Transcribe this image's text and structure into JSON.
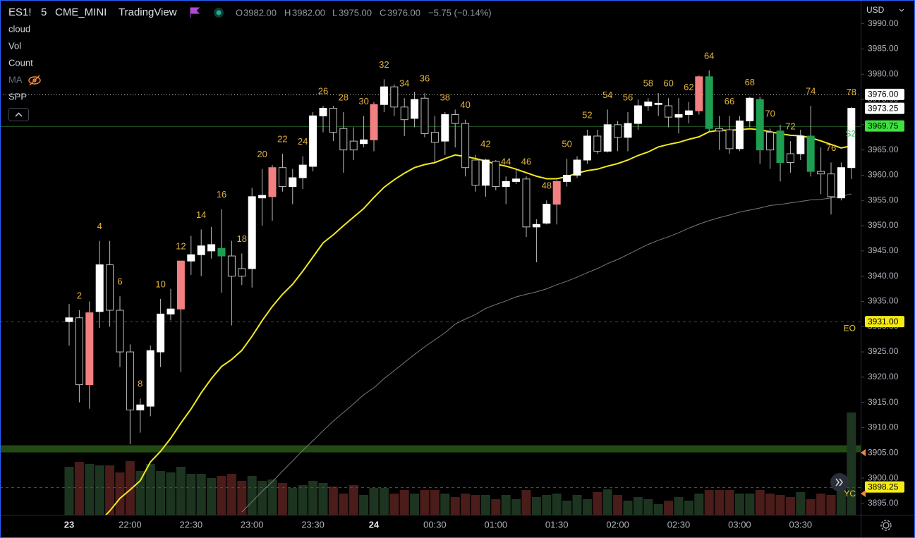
{
  "header": {
    "symbol": "ES1!",
    "interval": "5",
    "exchange": "CME_MINI",
    "source": "TradingView",
    "ohlc": {
      "O": "3982.00",
      "H": "3982.00",
      "L": "3975.00",
      "C": "3976.00"
    },
    "change": "−5.75 (−0.14%)"
  },
  "legend": [
    "cloud",
    "Vol",
    "Count",
    "MA",
    "SPP"
  ],
  "currency": "USD",
  "chart_data": {
    "type": "candlestick",
    "categories": [
      "23",
      null,
      null,
      null,
      null,
      null,
      "22:00",
      null,
      null,
      null,
      null,
      null,
      "22:30",
      null,
      null,
      null,
      null,
      null,
      "23:00",
      null,
      null,
      null,
      null,
      null,
      "23:30",
      null,
      null,
      null,
      null,
      null,
      "24",
      null,
      null,
      null,
      null,
      null,
      "00:30",
      null,
      null,
      null,
      null,
      null,
      "01:00",
      null,
      null,
      null,
      null,
      null,
      "01:30",
      null,
      null,
      null,
      null,
      null,
      "02:00",
      null,
      null,
      null,
      null,
      null,
      "02:30",
      null,
      null,
      null,
      null,
      null,
      "03:00",
      null,
      null,
      null,
      null,
      null,
      "03:30",
      null,
      null,
      null,
      null,
      null
    ],
    "open": [
      3931,
      3931.75,
      3918.5,
      3933,
      3942.25,
      3933.25,
      3925,
      3913.5,
      3914.25,
      3925,
      3932.5,
      3933.5,
      3943,
      3944.25,
      3945,
      3945.5,
      3944,
      3941.5,
      3941.5,
      3955.5,
      3955.75,
      3961.5,
      3957.75,
      3959.5,
      3961.75,
      3971.75,
      3973.25,
      3969.25,
      3966.75,
      3966.25,
      3967,
      3974,
      3977.5,
      3973.5,
      3971.25,
      3975.25,
      3968.5,
      3966.75,
      3972,
      3970.25,
      3963,
      3958,
      3962.75,
      3957.75,
      3958.75,
      3959.25,
      3949.75,
      3950.5,
      3954.25,
      3958.75,
      3960,
      3963,
      3967.75,
      3964.75,
      3970,
      3967.5,
      3970.25,
      3973.75,
      3974,
      3973.75,
      3971.5,
      3972,
      3972.75,
      3979.5,
      3969.25,
      3969,
      3965.25,
      3970.75,
      3975,
      3968.5,
      3968.75,
      3964.25,
      3964.25,
      3967.75,
      3960.75,
      3960.25,
      3955.5,
      3961.5
    ],
    "high": [
      3934.5,
      3933.25,
      3935,
      3947,
      3947,
      3936,
      3926.5,
      3915.75,
      3926.25,
      3935.5,
      3937.5,
      3943,
      3948,
      3949.25,
      3949.75,
      3953.25,
      3947,
      3944.5,
      3957.5,
      3961.25,
      3962,
      3964.25,
      3961.25,
      3963.75,
      3972.5,
      3973.75,
      3973.75,
      3972.5,
      3969.5,
      3971.75,
      3974.5,
      3979,
      3978,
      3975.25,
      3976.5,
      3976.25,
      3971.75,
      3972.5,
      3973,
      3971,
      3964,
      3963.25,
      3963,
      3959.75,
      3961.25,
      3959.75,
      3951.25,
      3955,
      3959,
      3963.25,
      3963.75,
      3969,
      3969,
      3973,
      3970.75,
      3972.5,
      3975,
      3975.25,
      3976.25,
      3975.25,
      3975.25,
      3974.5,
      3979.75,
      3980.75,
      3971.75,
      3971.75,
      3971.75,
      3975.5,
      3975.5,
      3969.25,
      3970,
      3966.75,
      3969,
      3973.75,
      3965.5,
      3962.5,
      3962.5,
      3973.5
    ],
    "low": [
      3926.25,
      3915,
      3913.75,
      3929.75,
      3930,
      3922,
      3906.75,
      3909,
      3912.25,
      3922,
      3931.25,
      3921,
      3940.25,
      3940,
      3943.5,
      3936.75,
      3930.25,
      3938.25,
      3937.75,
      3950,
      3951,
      3956.75,
      3954.25,
      3957.25,
      3960.75,
      3968.5,
      3966.75,
      3960.5,
      3963,
      3965.5,
      3964.75,
      3972.5,
      3971.75,
      3967.75,
      3969.5,
      3967.5,
      3962.5,
      3964,
      3965.5,
      3959.75,
      3956.75,
      3955.75,
      3957,
      3954.25,
      3958.25,
      3947.75,
      3942.75,
      3950.25,
      3950.25,
      3957.75,
      3959.5,
      3962.25,
      3964.25,
      3964.5,
      3964.75,
      3964.75,
      3969,
      3972.75,
      3971.75,
      3969.5,
      3968.25,
      3970.25,
      3972,
      3968.5,
      3965,
      3964.25,
      3964.75,
      3969.5,
      3962.25,
      3961.25,
      3958.75,
      3960.5,
      3963,
      3959.75,
      3956.25,
      3952.25,
      3955,
      3959.25
    ],
    "close": [
      3931.75,
      3918.5,
      3932.75,
      3942.25,
      3933.25,
      3925,
      3913.5,
      3914.5,
      3925.25,
      3932.5,
      3933.5,
      3943,
      3944.25,
      3946,
      3946.25,
      3944,
      3940,
      3940,
      3955.75,
      3956,
      3961.5,
      3957.75,
      3959.5,
      3962,
      3971.75,
      3973.25,
      3968.5,
      3965,
      3965,
      3967,
      3974,
      3977.5,
      3973.5,
      3971,
      3975,
      3968.25,
      3966.5,
      3972,
      3970.25,
      3961.5,
      3958,
      3963,
      3957.75,
      3958.75,
      3959.25,
      3949.75,
      3950.25,
      3954.25,
      3958.75,
      3960,
      3963,
      3967.75,
      3964.75,
      3970,
      3967.5,
      3970.25,
      3973.75,
      3974.5,
      3974.25,
      3971.5,
      3972,
      3972.75,
      3979.5,
      3969.25,
      3968.75,
      3965.25,
      3970.75,
      3975.25,
      3965,
      3965,
      3962.5,
      3962.5,
      3967.75,
      3960.75,
      3960.25,
      3955.75,
      3961.5,
      3973.25
    ],
    "colors": [
      "#ffffff",
      "#000000",
      "#f28080",
      "#ffffff",
      "#000000",
      "#000000",
      "#000000",
      "#ffffff",
      "#ffffff",
      "#ffffff",
      "#ffffff",
      "#f28080",
      "#ffffff",
      "#ffffff",
      "#ffffff",
      "#1e9e50",
      "#000000",
      "#000000",
      "#ffffff",
      "#ffffff",
      "#f28080",
      "#000000",
      "#ffffff",
      "#ffffff",
      "#ffffff",
      "#ffffff",
      "#000000",
      "#000000",
      "#000000",
      "#ffffff",
      "#f28080",
      "#ffffff",
      "#000000",
      "#000000",
      "#ffffff",
      "#000000",
      "#000000",
      "#ffffff",
      "#000000",
      "#000000",
      "#000000",
      "#ffffff",
      "#000000",
      "#ffffff",
      "#ffffff",
      "#000000",
      "#ffffff",
      "#ffffff",
      "#f28080",
      "#ffffff",
      "#ffffff",
      "#ffffff",
      "#000000",
      "#ffffff",
      "#000000",
      "#ffffff",
      "#ffffff",
      "#ffffff",
      "#ffffff",
      "#000000",
      "#ffffff",
      "#ffffff",
      "#f28080",
      "#1e9e50",
      "#000000",
      "#000000",
      "#ffffff",
      "#ffffff",
      "#1e9e50",
      "#000000",
      "#1e9e50",
      "#000000",
      "#ffffff",
      "#1e9e50",
      "#000000",
      "#000000",
      "#ffffff",
      "#ffffff"
    ],
    "wick_color": "#bdbdbd",
    "volume": [
      68,
      75,
      72,
      70,
      70,
      60,
      76,
      62,
      72,
      62,
      60,
      68,
      58,
      58,
      52,
      55,
      58,
      48,
      55,
      48,
      50,
      45,
      38,
      42,
      48,
      45,
      40,
      30,
      42,
      28,
      38,
      38,
      30,
      35,
      30,
      35,
      35,
      30,
      25,
      30,
      28,
      28,
      22,
      28,
      22,
      35,
      25,
      28,
      30,
      20,
      28,
      22,
      32,
      36,
      28,
      20,
      25,
      22,
      15,
      20,
      25,
      20,
      30,
      35,
      35,
      35,
      30,
      30,
      35,
      30,
      28,
      25,
      32,
      22,
      30,
      28,
      38,
      145
    ],
    "volume_colors": {
      "up": "#1d3520",
      "down": "#4a1c1a"
    },
    "counts": [
      null,
      2,
      null,
      4,
      null,
      6,
      null,
      8,
      null,
      10,
      null,
      12,
      null,
      14,
      null,
      16,
      null,
      18,
      null,
      20,
      null,
      22,
      null,
      24,
      null,
      26,
      null,
      28,
      null,
      30,
      null,
      32,
      null,
      34,
      null,
      36,
      null,
      38,
      null,
      40,
      null,
      42,
      null,
      44,
      null,
      46,
      null,
      48,
      null,
      50,
      null,
      52,
      null,
      54,
      null,
      56,
      null,
      58,
      null,
      60,
      null,
      62,
      null,
      64,
      null,
      66,
      null,
      68,
      null,
      70,
      null,
      72,
      null,
      74,
      null,
      76,
      null,
      78
    ],
    "count_color": "#e3b341",
    "ema": [
      null,
      null,
      null,
      3891.4,
      3893.5,
      3896,
      3897.7,
      3899.5,
      3903.2,
      3905.3,
      3907.9,
      3910.9,
      3913.7,
      3916.9,
      3919.7,
      3922.1,
      3923.5,
      3925.3,
      3928.1,
      3931.2,
      3934,
      3936.4,
      3938.4,
      3941,
      3943.8,
      3946.6,
      3948.2,
      3950,
      3951.7,
      3953.4,
      3955.6,
      3957.6,
      3959.1,
      3960.4,
      3961.5,
      3962.1,
      3962.5,
      3963.3,
      3964,
      3963.7,
      3963.3,
      3962.8,
      3962.2,
      3961.8,
      3961.2,
      3960.5,
      3959.8,
      3959.3,
      3959.3,
      3959.7,
      3960.4,
      3960.9,
      3961.2,
      3961.8,
      3962.3,
      3963,
      3963.9,
      3964.6,
      3965.6,
      3966.1,
      3966.5,
      3967.1,
      3967.6,
      3968.6,
      3968.9,
      3968.9,
      3969,
      3969.2,
      3969,
      3968.6,
      3968.2,
      3967.9,
      3967.8,
      3967.4,
      3966.8,
      3966.1,
      3965.4,
      3965.8
    ],
    "ema_color": "#f2ea1d",
    "sma": [
      null,
      null,
      null,
      null,
      null,
      null,
      null,
      null,
      null,
      null,
      null,
      null,
      null,
      null,
      null,
      null,
      null,
      3893.3,
      3895.3,
      3897.4,
      3899.3,
      3901.4,
      3903.4,
      3905.5,
      3907.4,
      3909.4,
      3911.3,
      3913,
      3914.7,
      3916.5,
      3917.9,
      3919.7,
      3921.3,
      3922.9,
      3924.5,
      3926,
      3927.4,
      3928.8,
      3930.5,
      3931.5,
      3932.4,
      3933.6,
      3934.4,
      3935.1,
      3935.9,
      3936.4,
      3936.9,
      3937.5,
      3938.3,
      3939,
      3939.8,
      3940.7,
      3941.5,
      3942.5,
      3943.3,
      3944.3,
      3945.3,
      3946.3,
      3947.1,
      3947.8,
      3948.6,
      3949.5,
      3950.3,
      3951,
      3951.6,
      3952.1,
      3952.7,
      3953.1,
      3953.5,
      3954,
      3954.2,
      3954.5,
      3954.8,
      3955.1,
      3955.2,
      3955.5,
      3955.8,
      3956.3
    ],
    "sma_color": "#7a7a7a",
    "ylim": [
      3892.75,
      3994
    ],
    "yticks": [
      {
        "value": 3895,
        "label": "3895.00"
      },
      {
        "value": 3900,
        "label": "3900.00"
      },
      {
        "value": 3905,
        "label": "3905.00"
      },
      {
        "value": 3910,
        "label": "3910.00"
      },
      {
        "value": 3915,
        "label": "3915.00"
      },
      {
        "value": 3920,
        "label": "3920.00"
      },
      {
        "value": 3925,
        "label": "3925.00"
      },
      {
        "value": 3930,
        "label": "3930.00"
      },
      {
        "value": 3935,
        "label": "3935.00"
      },
      {
        "value": 3940,
        "label": "3940.00"
      },
      {
        "value": 3945,
        "label": "3945.00"
      },
      {
        "value": 3950,
        "label": "3950.00"
      },
      {
        "value": 3955,
        "label": "3955.00"
      },
      {
        "value": 3960,
        "label": "3960.00"
      },
      {
        "value": 3965,
        "label": "3965.00"
      },
      {
        "value": 3970,
        "label": "3970.00"
      },
      {
        "value": 3975,
        "label": "3975.00"
      },
      {
        "value": 3980,
        "label": "3980.00"
      },
      {
        "value": 3985,
        "label": "3985.00"
      },
      {
        "value": 3990,
        "label": "3990.00"
      }
    ],
    "price_lines": [
      {
        "value": 3976,
        "label": "3976.00",
        "bg": "#ffffff",
        "style": "dotted"
      },
      {
        "value": 3973.25,
        "label": "3973.25",
        "bg": "#ffffff"
      },
      {
        "value": 3969.75,
        "label": "3969.75",
        "bg": "#3ee23f",
        "style": "solid"
      },
      {
        "value": 3931,
        "label": "3931.00",
        "bg": "#f5eb12",
        "style": "dashed"
      },
      {
        "value": 3898.25,
        "label": "3898.25",
        "bg": "#f5eb12",
        "style": "dashed"
      }
    ],
    "zones": [
      {
        "from": 3905.1,
        "to": 3906.5,
        "color": "#244a14"
      }
    ],
    "level_tags": [
      {
        "text": "EO",
        "value": 3929.6,
        "color": "#e3c341"
      },
      {
        "text": "YC",
        "value": 3896.8,
        "color": "#e3c341"
      },
      {
        "text": "S2",
        "value": 3968.1,
        "color": "#2fbf4a"
      }
    ]
  }
}
